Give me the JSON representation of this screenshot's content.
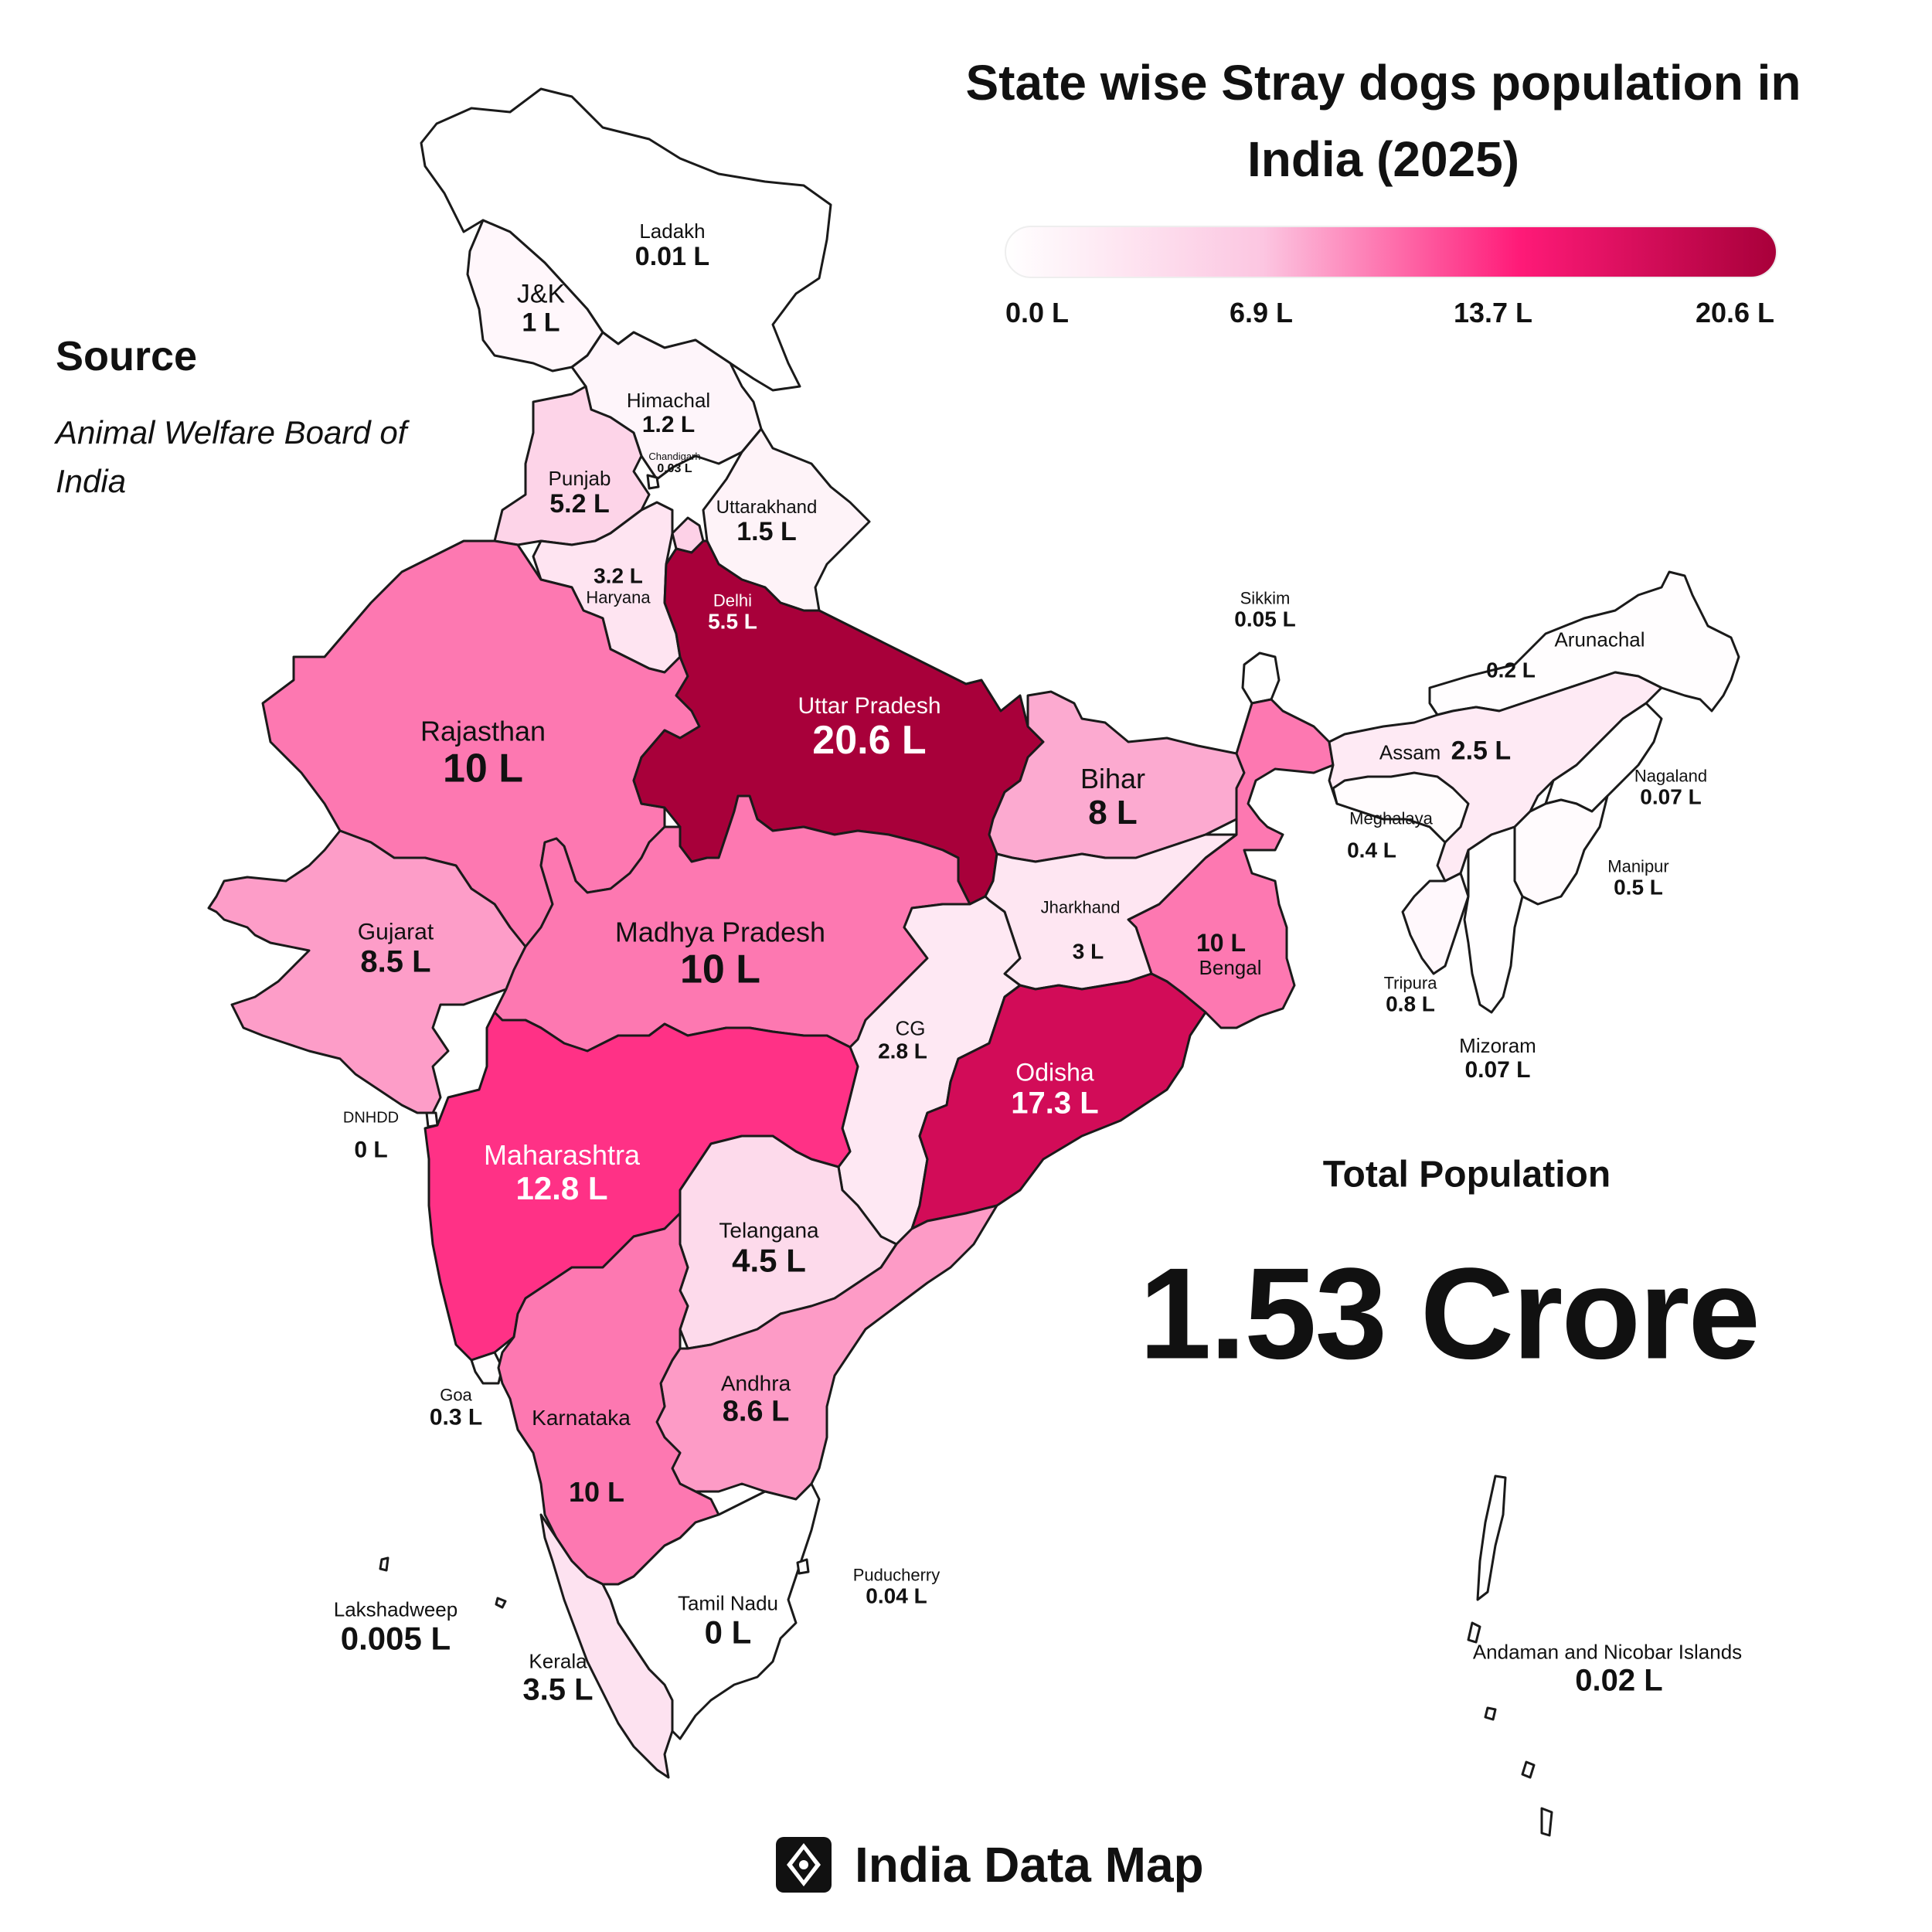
{
  "title": "State wise Stray dogs population in India (2025)",
  "legend": {
    "ticks": [
      "0.0 L",
      "6.9 L",
      "13.7 L",
      "20.6 L"
    ],
    "min": 0,
    "max": 20.6,
    "colors": [
      "#ffffff",
      "#fcc6e1",
      "#ff1a78",
      "#a8003a"
    ]
  },
  "source": {
    "title": "Source",
    "text": "Animal Welfare Board of India"
  },
  "total": {
    "label": "Total Population",
    "value": "1.53 Crore"
  },
  "brand": {
    "name": "India Data Map",
    "icon": "compass-diamond-icon"
  },
  "regions": [
    {
      "id": "ladakh",
      "name": "Ladakh",
      "value_text": "0.01 L",
      "value": 0.01
    },
    {
      "id": "jk",
      "name": "J&K",
      "value_text": "1 L",
      "value": 1
    },
    {
      "id": "himachal",
      "name": "Himachal",
      "value_text": "1.2 L",
      "value": 1.2
    },
    {
      "id": "chandigarh",
      "name": "Chandigarh",
      "value_text": "0.03 L",
      "value": 0.03
    },
    {
      "id": "punjab",
      "name": "Punjab",
      "value_text": "5.2 L",
      "value": 5.2
    },
    {
      "id": "uttarakhand",
      "name": "Uttarakhand",
      "value_text": "1.5 L",
      "value": 1.5
    },
    {
      "id": "haryana",
      "name": "Haryana",
      "value_text": "3.2 L",
      "value": 3.2
    },
    {
      "id": "delhi",
      "name": "Delhi",
      "value_text": "5.5 L",
      "value": 5.5
    },
    {
      "id": "rajasthan",
      "name": "Rajasthan",
      "value_text": "10 L",
      "value": 10
    },
    {
      "id": "up",
      "name": "Uttar Pradesh",
      "value_text": "20.6 L",
      "value": 20.6
    },
    {
      "id": "bihar",
      "name": "Bihar",
      "value_text": "8 L",
      "value": 8
    },
    {
      "id": "sikkim",
      "name": "Sikkim",
      "value_text": "0.05 L",
      "value": 0.05
    },
    {
      "id": "arunachal",
      "name": "Arunachal",
      "value_text": "0.2 L",
      "value": 0.2
    },
    {
      "id": "assam",
      "name": "Assam",
      "value_text": "2.5 L",
      "value": 2.5
    },
    {
      "id": "nagaland",
      "name": "Nagaland",
      "value_text": "0.07 L",
      "value": 0.07
    },
    {
      "id": "meghalaya",
      "name": "Meghalaya",
      "value_text": "0.4 L",
      "value": 0.4
    },
    {
      "id": "manipur",
      "name": "Manipur",
      "value_text": "0.5 L",
      "value": 0.5
    },
    {
      "id": "tripura",
      "name": "Tripura",
      "value_text": "0.8 L",
      "value": 0.8
    },
    {
      "id": "mizoram",
      "name": "Mizoram",
      "value_text": "0.07 L",
      "value": 0.07
    },
    {
      "id": "gujarat",
      "name": "Gujarat",
      "value_text": "8.5 L",
      "value": 8.5
    },
    {
      "id": "mp",
      "name": "Madhya Pradesh",
      "value_text": "10 L",
      "value": 10
    },
    {
      "id": "jharkhand",
      "name": "Jharkhand",
      "value_text": "3 L",
      "value": 3
    },
    {
      "id": "bengal",
      "name": "Bengal",
      "value_text": "10 L",
      "value": 10
    },
    {
      "id": "cg",
      "name": "CG",
      "value_text": "2.8 L",
      "value": 2.8
    },
    {
      "id": "odisha",
      "name": "Odisha",
      "value_text": "17.3 L",
      "value": 17.3
    },
    {
      "id": "dnhdd",
      "name": "DNHDD",
      "value_text": "0 L",
      "value": 0
    },
    {
      "id": "maharashtra",
      "name": "Maharashtra",
      "value_text": "12.8 L",
      "value": 12.8
    },
    {
      "id": "telangana",
      "name": "Telangana",
      "value_text": "4.5 L",
      "value": 4.5
    },
    {
      "id": "goa",
      "name": "Goa",
      "value_text": "0.3 L",
      "value": 0.3
    },
    {
      "id": "andhra",
      "name": "Andhra",
      "value_text": "8.6 L",
      "value": 8.6
    },
    {
      "id": "karnataka",
      "name": "Karnataka",
      "value_text": "10 L",
      "value": 10
    },
    {
      "id": "puducherry",
      "name": "Puducherry",
      "value_text": "0.04 L",
      "value": 0.04
    },
    {
      "id": "lakshadweep",
      "name": "Lakshadweep",
      "value_text": "0.005 L",
      "value": 0.005
    },
    {
      "id": "tamilnadu",
      "name": "Tamil Nadu",
      "value_text": "0 L",
      "value": 0
    },
    {
      "id": "kerala",
      "name": "Kerala",
      "value_text": "3.5 L",
      "value": 3.5
    },
    {
      "id": "andaman",
      "name": "Andaman and Nicobar Islands",
      "value_text": "0.02 L",
      "value": 0.02
    }
  ]
}
